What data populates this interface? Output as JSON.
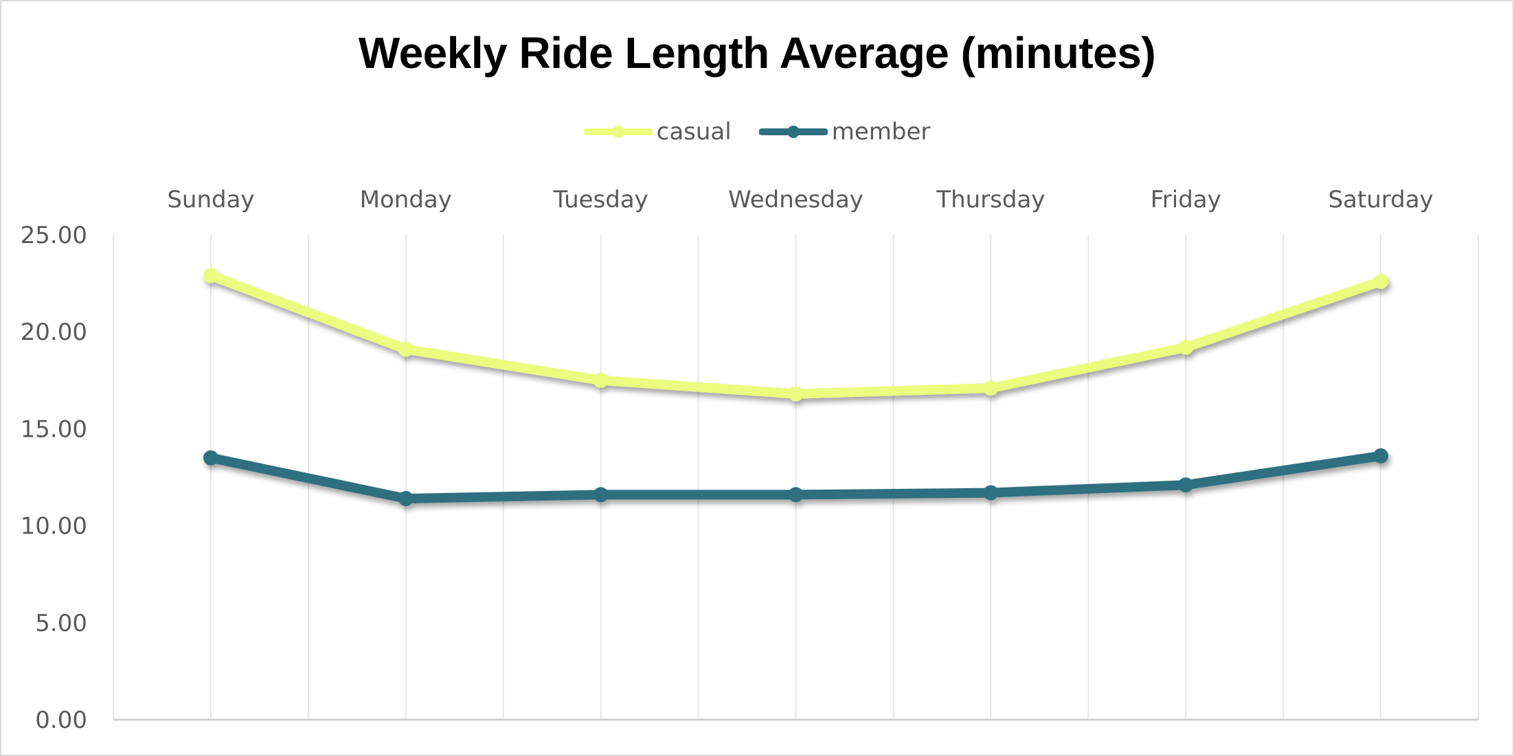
{
  "chart_data": {
    "type": "line",
    "title": "Weekly Ride Length Average (minutes)",
    "xlabel": "",
    "ylabel": "",
    "categories": [
      "Sunday",
      "Monday",
      "Tuesday",
      "Wednesday",
      "Thursday",
      "Friday",
      "Saturday"
    ],
    "ylim": [
      0,
      25
    ],
    "yticks": [
      "0.00",
      "5.00",
      "10.00",
      "15.00",
      "20.00",
      "25.00"
    ],
    "x_axis_position": "top",
    "legend_position": "top",
    "grid": "vertical",
    "series": [
      {
        "name": "casual",
        "color": "#ebfd7f",
        "values": [
          22.9,
          19.1,
          17.5,
          16.8,
          17.1,
          19.2,
          22.6
        ]
      },
      {
        "name": "member",
        "color": "#2e6f80",
        "values": [
          13.5,
          11.4,
          11.6,
          11.6,
          11.7,
          12.1,
          13.6
        ]
      }
    ]
  }
}
